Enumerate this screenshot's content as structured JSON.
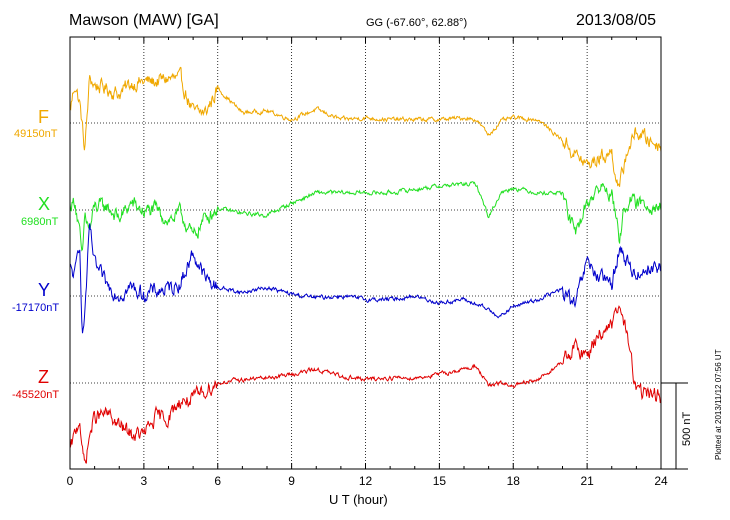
{
  "header": {
    "station": "Mawson (MAW)  [GA]",
    "coords": "GG (-67.60°,  62.88°)",
    "date": "2013/08/05"
  },
  "plotted_note": "Plotted at 2013/11/12 07:56  UT",
  "colors": {
    "F": "#f0a800",
    "X": "#22e022",
    "Y": "#0000cc",
    "Z": "#e00000",
    "axis": "#000000"
  },
  "chart_data": {
    "type": "line",
    "xlabel": "U T (hour)",
    "xlim": [
      0,
      24
    ],
    "x_ticks": [
      "0",
      "3",
      "6",
      "9",
      "12",
      "15",
      "18",
      "21",
      "24"
    ],
    "grid": true,
    "scale_bar": "500 nT",
    "series": [
      {
        "name": "F",
        "baseline": "49150nT",
        "x": [
          0,
          0.2,
          0.4,
          0.6,
          0.8,
          1,
          1.5,
          2,
          2.5,
          3,
          3.5,
          4,
          4.5,
          5,
          5.5,
          6,
          7,
          8,
          9,
          10,
          11,
          12,
          13,
          14,
          15,
          16,
          16.5,
          17,
          17.5,
          18,
          19,
          20,
          20.5,
          21,
          21.5,
          22,
          22.3,
          22.6,
          23,
          23.5,
          24
        ],
        "y": [
          70,
          230,
          110,
          -160,
          260,
          220,
          200,
          170,
          230,
          240,
          240,
          260,
          250,
          60,
          60,
          200,
          60,
          70,
          20,
          80,
          20,
          30,
          20,
          20,
          20,
          30,
          20,
          -70,
          10,
          30,
          20,
          -100,
          -180,
          -250,
          -200,
          -170,
          -400,
          -170,
          -50,
          -100,
          -130
        ]
      },
      {
        "name": "X",
        "baseline": "6980nT",
        "x": [
          0,
          0.2,
          0.4,
          0.5,
          0.6,
          0.8,
          1,
          1.5,
          2,
          2.5,
          3,
          3.5,
          4,
          4.5,
          5,
          5.5,
          6,
          7,
          8,
          9,
          10,
          11,
          12,
          13,
          14,
          15,
          16,
          16.5,
          17,
          17.5,
          18,
          19,
          20,
          20.5,
          21,
          21.5,
          22,
          22.3,
          22.6,
          23,
          23.5,
          24
        ],
        "y": [
          20,
          60,
          -150,
          -300,
          -30,
          -120,
          20,
          20,
          -50,
          40,
          -10,
          0,
          -60,
          -20,
          -160,
          -40,
          10,
          -20,
          -30,
          40,
          100,
          100,
          100,
          100,
          120,
          140,
          150,
          150,
          -40,
          100,
          130,
          100,
          100,
          -150,
          40,
          130,
          100,
          -170,
          60,
          30,
          40,
          20
        ]
      },
      {
        "name": "Y",
        "baseline": "-17170nT",
        "x": [
          0,
          0.2,
          0.4,
          0.5,
          0.6,
          0.8,
          1,
          1.5,
          2,
          2.5,
          3,
          3.5,
          4,
          4.5,
          5,
          5.5,
          6,
          7,
          8,
          9,
          10,
          11,
          12,
          13,
          14,
          15,
          16,
          17,
          17.5,
          18,
          19,
          20,
          20.5,
          21,
          21.5,
          22,
          22.3,
          22.6,
          23,
          23.5,
          24
        ],
        "y": [
          150,
          120,
          320,
          -250,
          -100,
          400,
          180,
          60,
          10,
          50,
          10,
          30,
          40,
          80,
          250,
          100,
          50,
          20,
          50,
          10,
          -10,
          0,
          -20,
          -20,
          0,
          -40,
          -20,
          -80,
          -120,
          -60,
          -20,
          40,
          -60,
          200,
          100,
          70,
          280,
          200,
          120,
          170,
          160
        ]
      },
      {
        "name": "Z",
        "baseline": "-45520nT",
        "x": [
          0,
          0.2,
          0.4,
          0.5,
          0.6,
          0.8,
          1,
          1.5,
          2,
          2.5,
          3,
          3.5,
          4,
          4.5,
          5,
          5.5,
          6,
          7,
          8,
          9,
          10,
          11,
          12,
          13,
          14,
          15,
          16,
          16.5,
          17,
          17.5,
          18,
          19,
          20,
          20.5,
          21,
          21.5,
          22,
          22.3,
          22.6,
          23,
          23.5,
          24
        ],
        "y": [
          -400,
          -300,
          -200,
          -400,
          -480,
          -300,
          -200,
          -180,
          -250,
          -300,
          -300,
          -200,
          -200,
          -100,
          -100,
          -40,
          0,
          20,
          30,
          50,
          80,
          40,
          20,
          30,
          30,
          50,
          80,
          100,
          -20,
          0,
          -20,
          20,
          120,
          200,
          160,
          300,
          320,
          450,
          300,
          -50,
          -60,
          -80
        ]
      }
    ]
  }
}
